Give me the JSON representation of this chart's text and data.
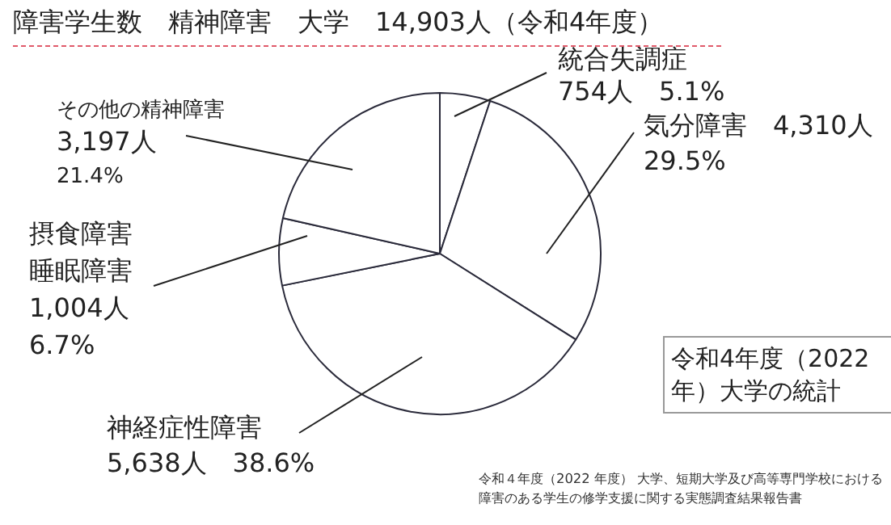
{
  "chart_data": {
    "type": "pie",
    "title": "障害学生数　精神障害　大学　14,903人（令和4年度）",
    "categories": [
      "統合失調症",
      "気分障害",
      "神経症性障害",
      "摂食障害睡眠障害",
      "その他の精神障害"
    ],
    "values": [
      754,
      4310,
      5638,
      1004,
      3197
    ],
    "value_labels": [
      "754人　5.1%",
      "4,310人\n29.5%",
      "5,638人　38.6%",
      "1,004人\n6.7%",
      "3,197人\n21.4%"
    ],
    "colors": [
      "#ffffff",
      "#ffffff",
      "#ffffff",
      "#ffffff",
      "#ffffff"
    ],
    "legend": false,
    "annotations": [
      "令和4年度（2022\n年）大学の統計",
      "令和４年度（2022 年度） 大学、短期大学及び高等専門学校における障害のある学生の修学支援に関する実態調査結果報告書"
    ]
  }
}
